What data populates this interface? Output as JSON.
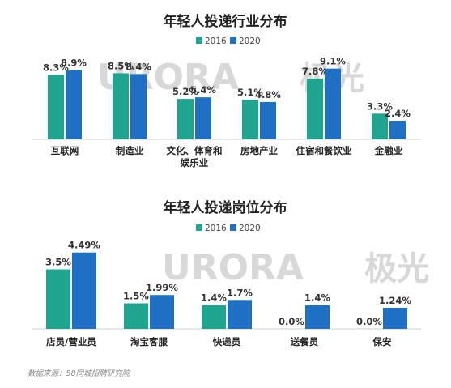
{
  "colors": {
    "2016": "#1fa58f",
    "2020": "#1f6fc5",
    "axis": "#cfcfcf",
    "watermark": "#d8d8d8"
  },
  "watermark": {
    "text": "URORA",
    "brand": "极光"
  },
  "source": "数据来源：58同城招聘研究院",
  "chart_data": [
    {
      "type": "bar",
      "title": "年轻人投递行业分布",
      "categories": [
        "互联网",
        "制造业",
        "文化、体育和娱乐业",
        "房地产业",
        "住宿和餐饮业",
        "金融业"
      ],
      "category_lines": [
        [
          "互联网"
        ],
        [
          "制造业"
        ],
        [
          "文化、体育和",
          "娱乐业"
        ],
        [
          "房地产业"
        ],
        [
          "住宿和餐饮业"
        ],
        [
          "金融业"
        ]
      ],
      "series": [
        {
          "name": "2016",
          "values": [
            8.3,
            8.5,
            5.2,
            5.1,
            7.8,
            3.3
          ],
          "labels": [
            "8.3%",
            "8.5%",
            "5.2%",
            "5.1%",
            "7.8%",
            "3.3%"
          ]
        },
        {
          "name": "2020",
          "values": [
            8.9,
            8.4,
            5.4,
            4.8,
            9.1,
            2.4
          ],
          "labels": [
            "8.9%",
            "8.4%",
            "5.4%",
            "4.8%",
            "9.1%",
            "2.4%"
          ]
        }
      ],
      "unit": "%"
    },
    {
      "type": "bar",
      "title": "年轻人投递岗位分布",
      "categories": [
        "店员/营业员",
        "淘宝客服",
        "快递员",
        "送餐员",
        "保安"
      ],
      "category_lines": [
        [
          "店员/营业员"
        ],
        [
          "淘宝客服"
        ],
        [
          "快递员"
        ],
        [
          "送餐员"
        ],
        [
          "保安"
        ]
      ],
      "series": [
        {
          "name": "2016",
          "values": [
            3.5,
            1.5,
            1.4,
            0.0,
            0.0
          ],
          "labels": [
            "3.5%",
            "1.5%",
            "1.4%",
            "0.0%",
            "0.0%"
          ]
        },
        {
          "name": "2020",
          "values": [
            4.49,
            1.99,
            1.7,
            1.4,
            1.24
          ],
          "labels": [
            "4.49%",
            "1.99%",
            "1.7%",
            "1.4%",
            "1.24%"
          ]
        }
      ],
      "unit": "%"
    }
  ]
}
